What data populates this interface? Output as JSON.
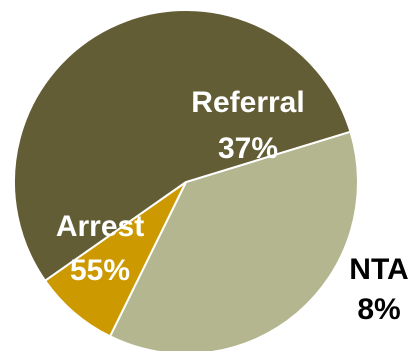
{
  "chart_data": {
    "type": "pie",
    "slices": [
      {
        "label": "Referral",
        "value": 37,
        "display": "37%",
        "color": "#b3b68f",
        "label_color": "#ffffff"
      },
      {
        "label": "NTA",
        "value": 8,
        "display": "8%",
        "color": "#cc9900",
        "label_color": "#000000"
      },
      {
        "label": "Arrest",
        "value": 55,
        "display": "55%",
        "color": "#625d34",
        "label_color": "#ffffff"
      }
    ],
    "legend": "none"
  }
}
